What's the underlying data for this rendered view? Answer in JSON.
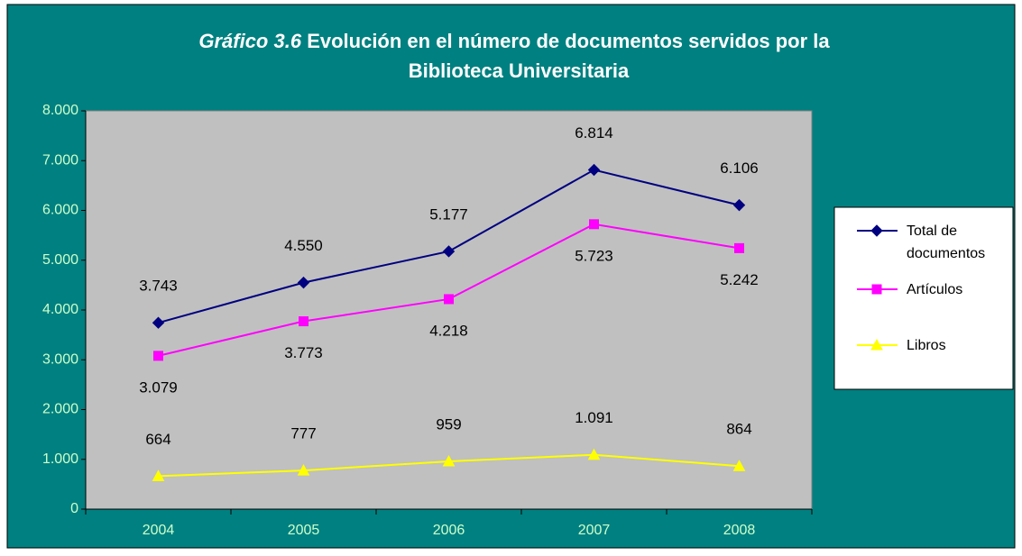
{
  "chart_data": {
    "type": "line",
    "title_prefix": "Gráfico 3.6",
    "title": [
      "Evolución en el número de documentos servidos por la",
      "Biblioteca Universitaria"
    ],
    "categories": [
      "2004",
      "2005",
      "2006",
      "2007",
      "2008"
    ],
    "series": [
      {
        "name": "Total de documentos",
        "color": "#000080",
        "marker": "diamond",
        "label_side": "above",
        "values": [
          3743,
          4550,
          5177,
          6814,
          6106
        ],
        "value_labels": [
          "3.743",
          "4.550",
          "5.177",
          "6.814",
          "6.106"
        ]
      },
      {
        "name": "Artículos",
        "color": "#FF00FF",
        "marker": "square",
        "label_side": "below",
        "values": [
          3079,
          3773,
          4218,
          5723,
          5242
        ],
        "value_labels": [
          "3.079",
          "3.773",
          "4.218",
          "5.723",
          "5.242"
        ]
      },
      {
        "name": "Libros",
        "color": "#FFFF00",
        "marker": "triangle",
        "label_side": "above",
        "values": [
          664,
          777,
          959,
          1091,
          864
        ],
        "value_labels": [
          "664",
          "777",
          "959",
          "1.091",
          "864"
        ]
      }
    ],
    "ylim": [
      0,
      8000
    ],
    "yticks": [
      0,
      {
        "value": 1000,
        "label": "1.000"
      },
      {
        "value": 2000,
        "label": "2.000"
      },
      {
        "value": 3000,
        "label": "3.000"
      },
      {
        "value": 4000,
        "label": "4.000"
      },
      {
        "value": 5000,
        "label": "5.000"
      },
      {
        "value": 6000,
        "label": "6.000"
      },
      {
        "value": 7000,
        "label": "7.000"
      },
      {
        "value": 8000,
        "label": "8.000"
      }
    ],
    "grid": false,
    "legend": "right"
  }
}
